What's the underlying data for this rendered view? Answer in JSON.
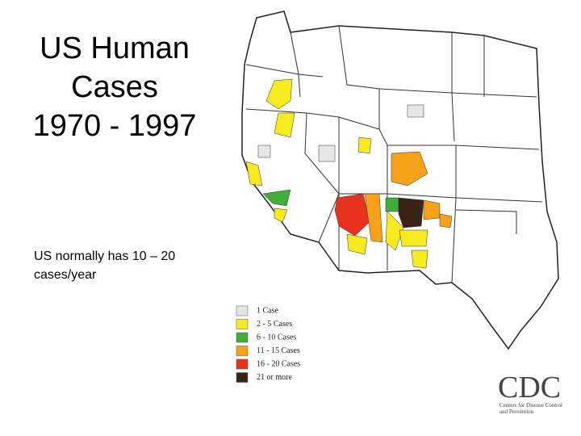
{
  "slide": {
    "title_lines": [
      "US Human",
      "Cases",
      "1970 - 1997"
    ],
    "body_lines": [
      "US normally has 10 – 20",
      "cases/year"
    ],
    "legend": {
      "items": [
        {
          "label": "1 Case",
          "color": "#e6e6e6"
        },
        {
          "label": "2 - 5 Cases",
          "color": "#f7ea1f"
        },
        {
          "label": "6 - 10 Cases",
          "color": "#3fae3a"
        },
        {
          "label": "11 - 15 Cases",
          "color": "#f5a21a"
        },
        {
          "label": "16 - 20 Cases",
          "color": "#e8321e"
        },
        {
          "label": "21 or more",
          "color": "#3a2418"
        }
      ]
    },
    "logo": {
      "name": "CDC",
      "lines": [
        "Centers for Disease Control",
        "and Prevention"
      ]
    }
  }
}
